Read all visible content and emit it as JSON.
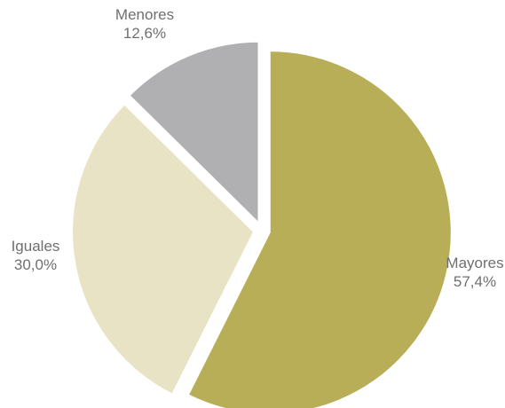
{
  "chart_data": {
    "type": "pie",
    "title": "",
    "slices": [
      {
        "label": "Mayores",
        "value": 57.4,
        "value_label": "57,4%",
        "color": "#b8ae57"
      },
      {
        "label": "Iguales",
        "value": 30.0,
        "value_label": "30,0%",
        "color": "#e9e3c6"
      },
      {
        "label": "Menores",
        "value": 12.6,
        "value_label": "12,6%",
        "color": "#b0b0b2"
      }
    ],
    "start": "12 o'clock",
    "direction": "clockwise",
    "exploded": true
  }
}
